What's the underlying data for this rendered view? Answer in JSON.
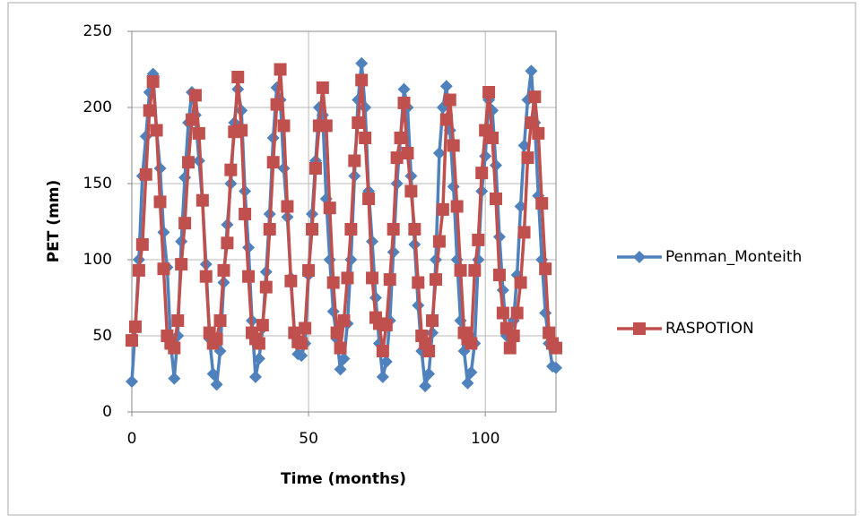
{
  "chart_data": {
    "type": "line",
    "xlabel": "Time (months)",
    "ylabel": "PET (mm)",
    "x": [
      0,
      1,
      2,
      3,
      4,
      5,
      6,
      7,
      8,
      9,
      10,
      11,
      12,
      13,
      14,
      15,
      16,
      17,
      18,
      19,
      20,
      21,
      22,
      23,
      24,
      25,
      26,
      27,
      28,
      29,
      30,
      31,
      32,
      33,
      34,
      35,
      36,
      37,
      38,
      39,
      40,
      41,
      42,
      43,
      44,
      45,
      46,
      47,
      48,
      49,
      50,
      51,
      52,
      53,
      54,
      55,
      56,
      57,
      58,
      59,
      60,
      61,
      62,
      63,
      64,
      65,
      66,
      67,
      68,
      69,
      70,
      71,
      72,
      73,
      74,
      75,
      76,
      77,
      78,
      79,
      80,
      81,
      82,
      83,
      84,
      85,
      86,
      87,
      88,
      89,
      90,
      91,
      92,
      93,
      94,
      95,
      96,
      97,
      98,
      99,
      100,
      101,
      102,
      103,
      104,
      105,
      106,
      107,
      108,
      109,
      110,
      111,
      112,
      113,
      114,
      115,
      116,
      117,
      118,
      119,
      120
    ],
    "series": [
      {
        "name": "Penman_Monteith",
        "color": "#4f81bd",
        "marker": "diamond",
        "values": [
          20,
          55,
          100,
          155,
          181,
          210,
          222,
          185,
          160,
          118,
          95,
          45,
          22,
          50,
          112,
          154,
          190,
          210,
          195,
          165,
          138,
          97,
          48,
          25,
          18,
          40,
          85,
          123,
          150,
          190,
          212,
          198,
          145,
          108,
          60,
          23,
          35,
          55,
          92,
          130,
          180,
          213,
          205,
          160,
          128,
          88,
          53,
          38,
          37,
          45,
          90,
          130,
          165,
          200,
          195,
          140,
          100,
          66,
          48,
          28,
          35,
          58,
          100,
          155,
          205,
          229,
          200,
          145,
          112,
          75,
          45,
          23,
          33,
          60,
          105,
          150,
          180,
          212,
          200,
          155,
          110,
          70,
          40,
          17,
          25,
          52,
          100,
          170,
          200,
          214,
          185,
          148,
          100,
          60,
          40,
          19,
          26,
          45,
          100,
          145,
          168,
          205,
          198,
          162,
          115,
          80,
          50,
          52,
          60,
          90,
          135,
          175,
          205,
          224,
          190,
          142,
          100,
          65,
          45,
          30,
          29
        ]
      },
      {
        "name": "RASPOTION",
        "color": "#c0504d",
        "marker": "square",
        "values": [
          47,
          56,
          93,
          110,
          156,
          198,
          217,
          185,
          138,
          94,
          50,
          45,
          42,
          60,
          97,
          124,
          164,
          192,
          208,
          183,
          139,
          89,
          52,
          45,
          48,
          60,
          93,
          111,
          159,
          184,
          220,
          185,
          130,
          89,
          52,
          48,
          45,
          57,
          82,
          120,
          164,
          202,
          225,
          188,
          135,
          86,
          52,
          46,
          45,
          55,
          93,
          120,
          160,
          188,
          213,
          188,
          134,
          85,
          52,
          42,
          60,
          88,
          120,
          165,
          190,
          218,
          180,
          140,
          88,
          62,
          58,
          40,
          57,
          87,
          120,
          167,
          180,
          203,
          170,
          145,
          120,
          85,
          50,
          45,
          40,
          60,
          87,
          112,
          133,
          192,
          205,
          175,
          135,
          93,
          52,
          48,
          45,
          93,
          113,
          157,
          185,
          210,
          180,
          140,
          90,
          65,
          55,
          42,
          50,
          65,
          85,
          118,
          167,
          190,
          207,
          183,
          137,
          94,
          52,
          45,
          42
        ]
      }
    ],
    "xlim": [
      0,
      120
    ],
    "ylim": [
      0,
      250
    ],
    "xticks": [
      0,
      50,
      100
    ],
    "yticks": [
      0,
      50,
      100,
      150,
      200,
      250
    ],
    "grid": true,
    "legend": "right"
  }
}
